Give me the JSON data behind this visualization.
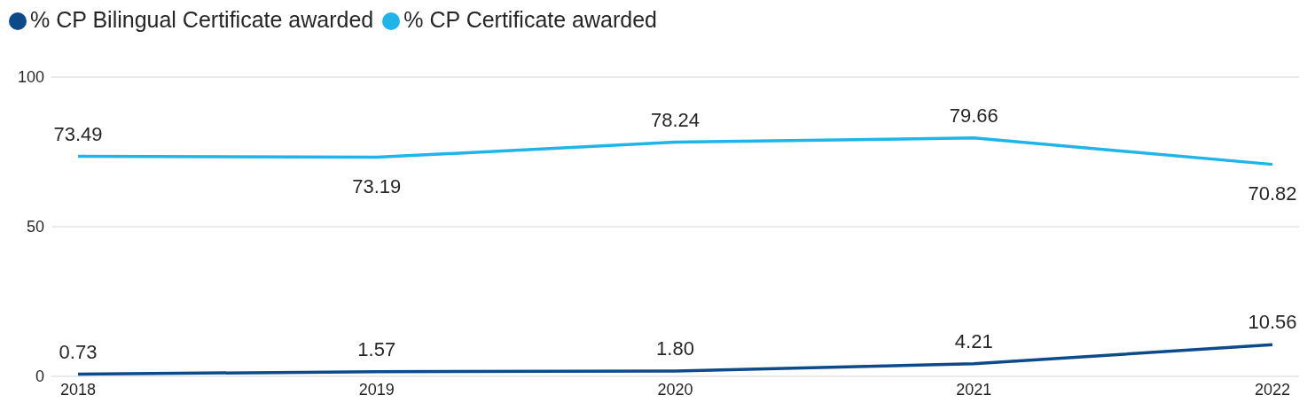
{
  "chart_data": {
    "type": "line",
    "categories": [
      "2018",
      "2019",
      "2020",
      "2021",
      "2022"
    ],
    "series": [
      {
        "name": "% CP Bilingual Certificate awarded",
        "color": "#0d4a8a",
        "values": [
          0.73,
          1.57,
          1.8,
          4.21,
          10.56
        ],
        "value_labels": [
          "0.73",
          "1.57",
          "1.80",
          "4.21",
          "10.56"
        ]
      },
      {
        "name": "% CP Certificate awarded",
        "color": "#1fb5e8",
        "values": [
          73.49,
          73.19,
          78.24,
          79.66,
          70.82
        ],
        "value_labels": [
          "73.49",
          "73.19",
          "78.24",
          "79.66",
          "70.82"
        ]
      }
    ],
    "ylim": [
      0,
      100
    ],
    "yticks": [
      0,
      50,
      100
    ],
    "grid": "y",
    "legend": "top left",
    "marker": "none",
    "line_style": "solid"
  }
}
